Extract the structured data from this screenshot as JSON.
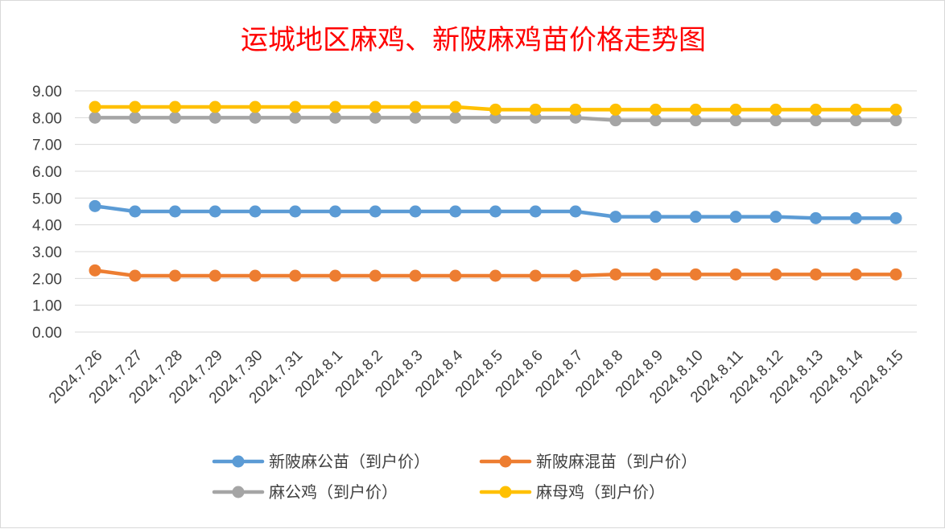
{
  "chart_data": {
    "type": "line",
    "title": "运城地区麻鸡、新陂麻鸡苗价格走势图",
    "xlabel": "",
    "ylabel": "",
    "ylim": [
      0,
      9
    ],
    "y_ticks": [
      "0.00",
      "1.00",
      "2.00",
      "3.00",
      "4.00",
      "5.00",
      "6.00",
      "7.00",
      "8.00",
      "9.00"
    ],
    "grid": true,
    "legend_position": "bottom",
    "categories": [
      "2024.7.26",
      "2024.7.27",
      "2024.7.28",
      "2024.7.29",
      "2024.7.30",
      "2024.7.31",
      "2024.8.1",
      "2024.8.2",
      "2024.8.3",
      "2024.8.4",
      "2024.8.5",
      "2024.8.6",
      "2024.8.7",
      "2024.8.8",
      "2024.8.9",
      "2024.8.10",
      "2024.8.11",
      "2024.8.12",
      "2024.8.13",
      "2024.8.14",
      "2024.8.15"
    ],
    "series": [
      {
        "name": "新陂麻公苗（到户价）",
        "color": "#5b9bd5",
        "values": [
          4.7,
          4.5,
          4.5,
          4.5,
          4.5,
          4.5,
          4.5,
          4.5,
          4.5,
          4.5,
          4.5,
          4.5,
          4.5,
          4.3,
          4.3,
          4.3,
          4.3,
          4.3,
          4.25,
          4.25,
          4.25
        ]
      },
      {
        "name": "新陂麻混苗（到户价）",
        "color": "#ed7d31",
        "values": [
          2.3,
          2.1,
          2.1,
          2.1,
          2.1,
          2.1,
          2.1,
          2.1,
          2.1,
          2.1,
          2.1,
          2.1,
          2.1,
          2.15,
          2.15,
          2.15,
          2.15,
          2.15,
          2.15,
          2.15,
          2.15
        ]
      },
      {
        "name": "麻公鸡（到户价）",
        "color": "#a5a5a5",
        "values": [
          8.0,
          8.0,
          8.0,
          8.0,
          8.0,
          8.0,
          8.0,
          8.0,
          8.0,
          8.0,
          8.0,
          8.0,
          8.0,
          7.9,
          7.9,
          7.9,
          7.9,
          7.9,
          7.9,
          7.9,
          7.9
        ]
      },
      {
        "name": "麻母鸡（到户价）",
        "color": "#ffc000",
        "values": [
          8.4,
          8.4,
          8.4,
          8.4,
          8.4,
          8.4,
          8.4,
          8.4,
          8.4,
          8.4,
          8.3,
          8.3,
          8.3,
          8.3,
          8.3,
          8.3,
          8.3,
          8.3,
          8.3,
          8.3,
          8.3
        ]
      }
    ]
  }
}
